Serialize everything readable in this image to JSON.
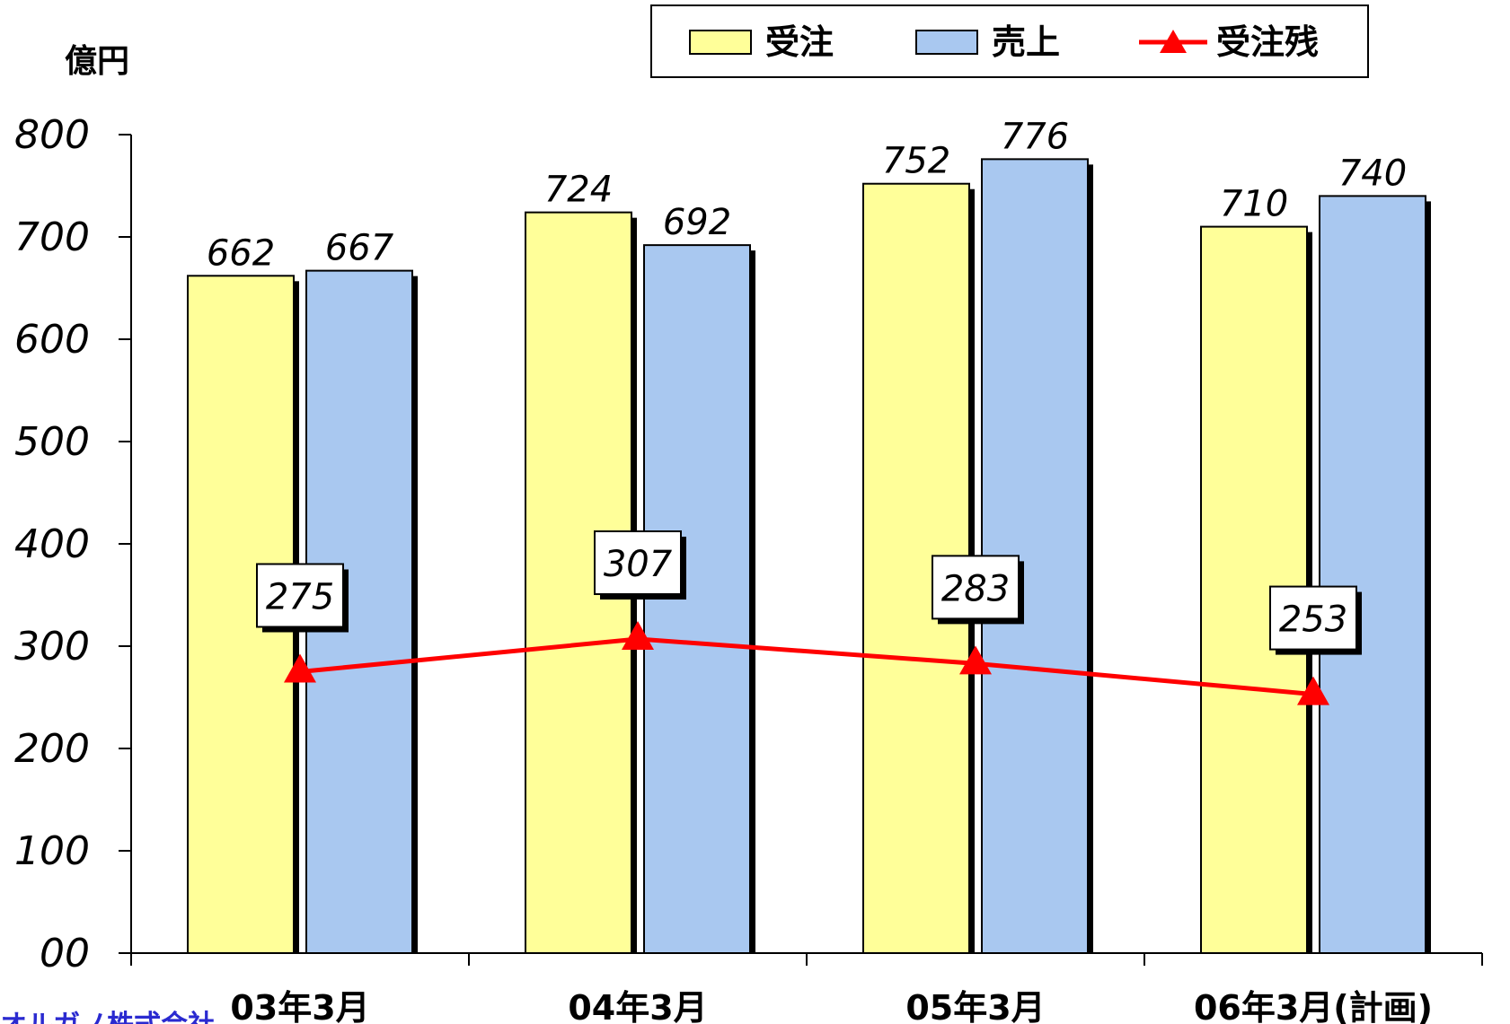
{
  "chart_data": {
    "type": "bar",
    "ylabel": "億円",
    "ylim": [
      0,
      800
    ],
    "yticks": [
      0,
      100,
      200,
      300,
      400,
      500,
      600,
      700,
      800
    ],
    "ytick_labels": [
      "00",
      "100",
      "200",
      "300",
      "400",
      "500",
      "600",
      "700",
      "800"
    ],
    "categories": [
      "03年3月",
      "04年3月",
      "05年3月",
      "06年3月(計画)"
    ],
    "series": [
      {
        "name": "受注",
        "kind": "bar",
        "color": "#ffff99",
        "values": [
          662,
          724,
          752,
          710
        ]
      },
      {
        "name": "売上",
        "kind": "bar",
        "color": "#a9c8f0",
        "values": [
          667,
          692,
          776,
          740
        ]
      },
      {
        "name": "受注残",
        "kind": "line",
        "marker": "triangle",
        "color": "#ff0000",
        "values": [
          275,
          307,
          283,
          253
        ]
      }
    ],
    "legend_position": "top-right",
    "grid": false
  },
  "footer_text": "オルガノ株式会社"
}
